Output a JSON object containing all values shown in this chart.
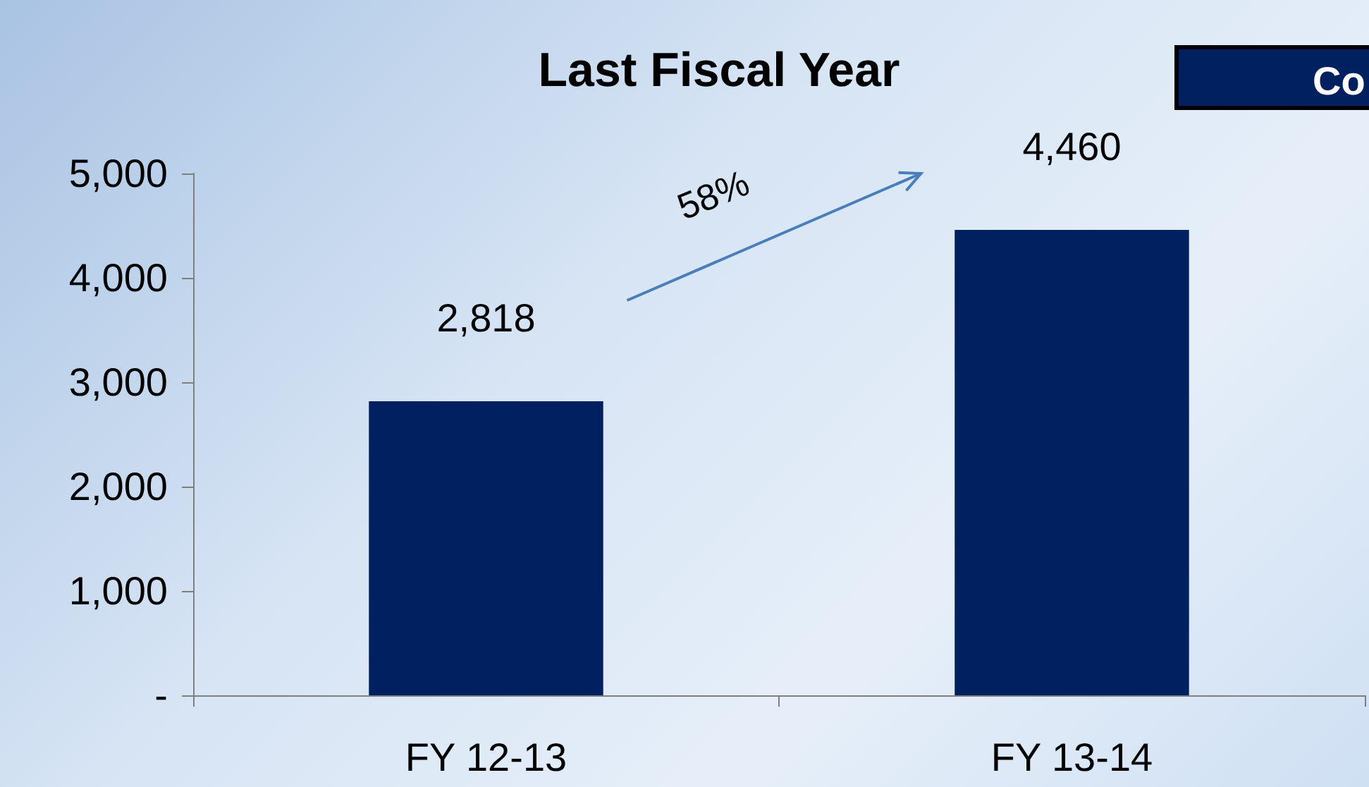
{
  "chart_data": {
    "type": "bar",
    "title": "Last Fiscal Year",
    "categories": [
      "FY 12-13",
      "FY 13-14"
    ],
    "values": [
      2818,
      4460
    ],
    "value_labels": [
      "2,818",
      "4,460"
    ],
    "color": "#002060",
    "ylim": [
      0,
      5000
    ],
    "yticks": [
      {
        "value": 0,
        "label": "-"
      },
      {
        "value": 1000,
        "label": "1,000"
      },
      {
        "value": 2000,
        "label": "2,000"
      },
      {
        "value": 3000,
        "label": "3,000"
      },
      {
        "value": 4000,
        "label": "4,000"
      },
      {
        "value": 5000,
        "label": "5,000"
      }
    ],
    "grid": false,
    "annotations": [
      "58%",
      "Co"
    ]
  }
}
